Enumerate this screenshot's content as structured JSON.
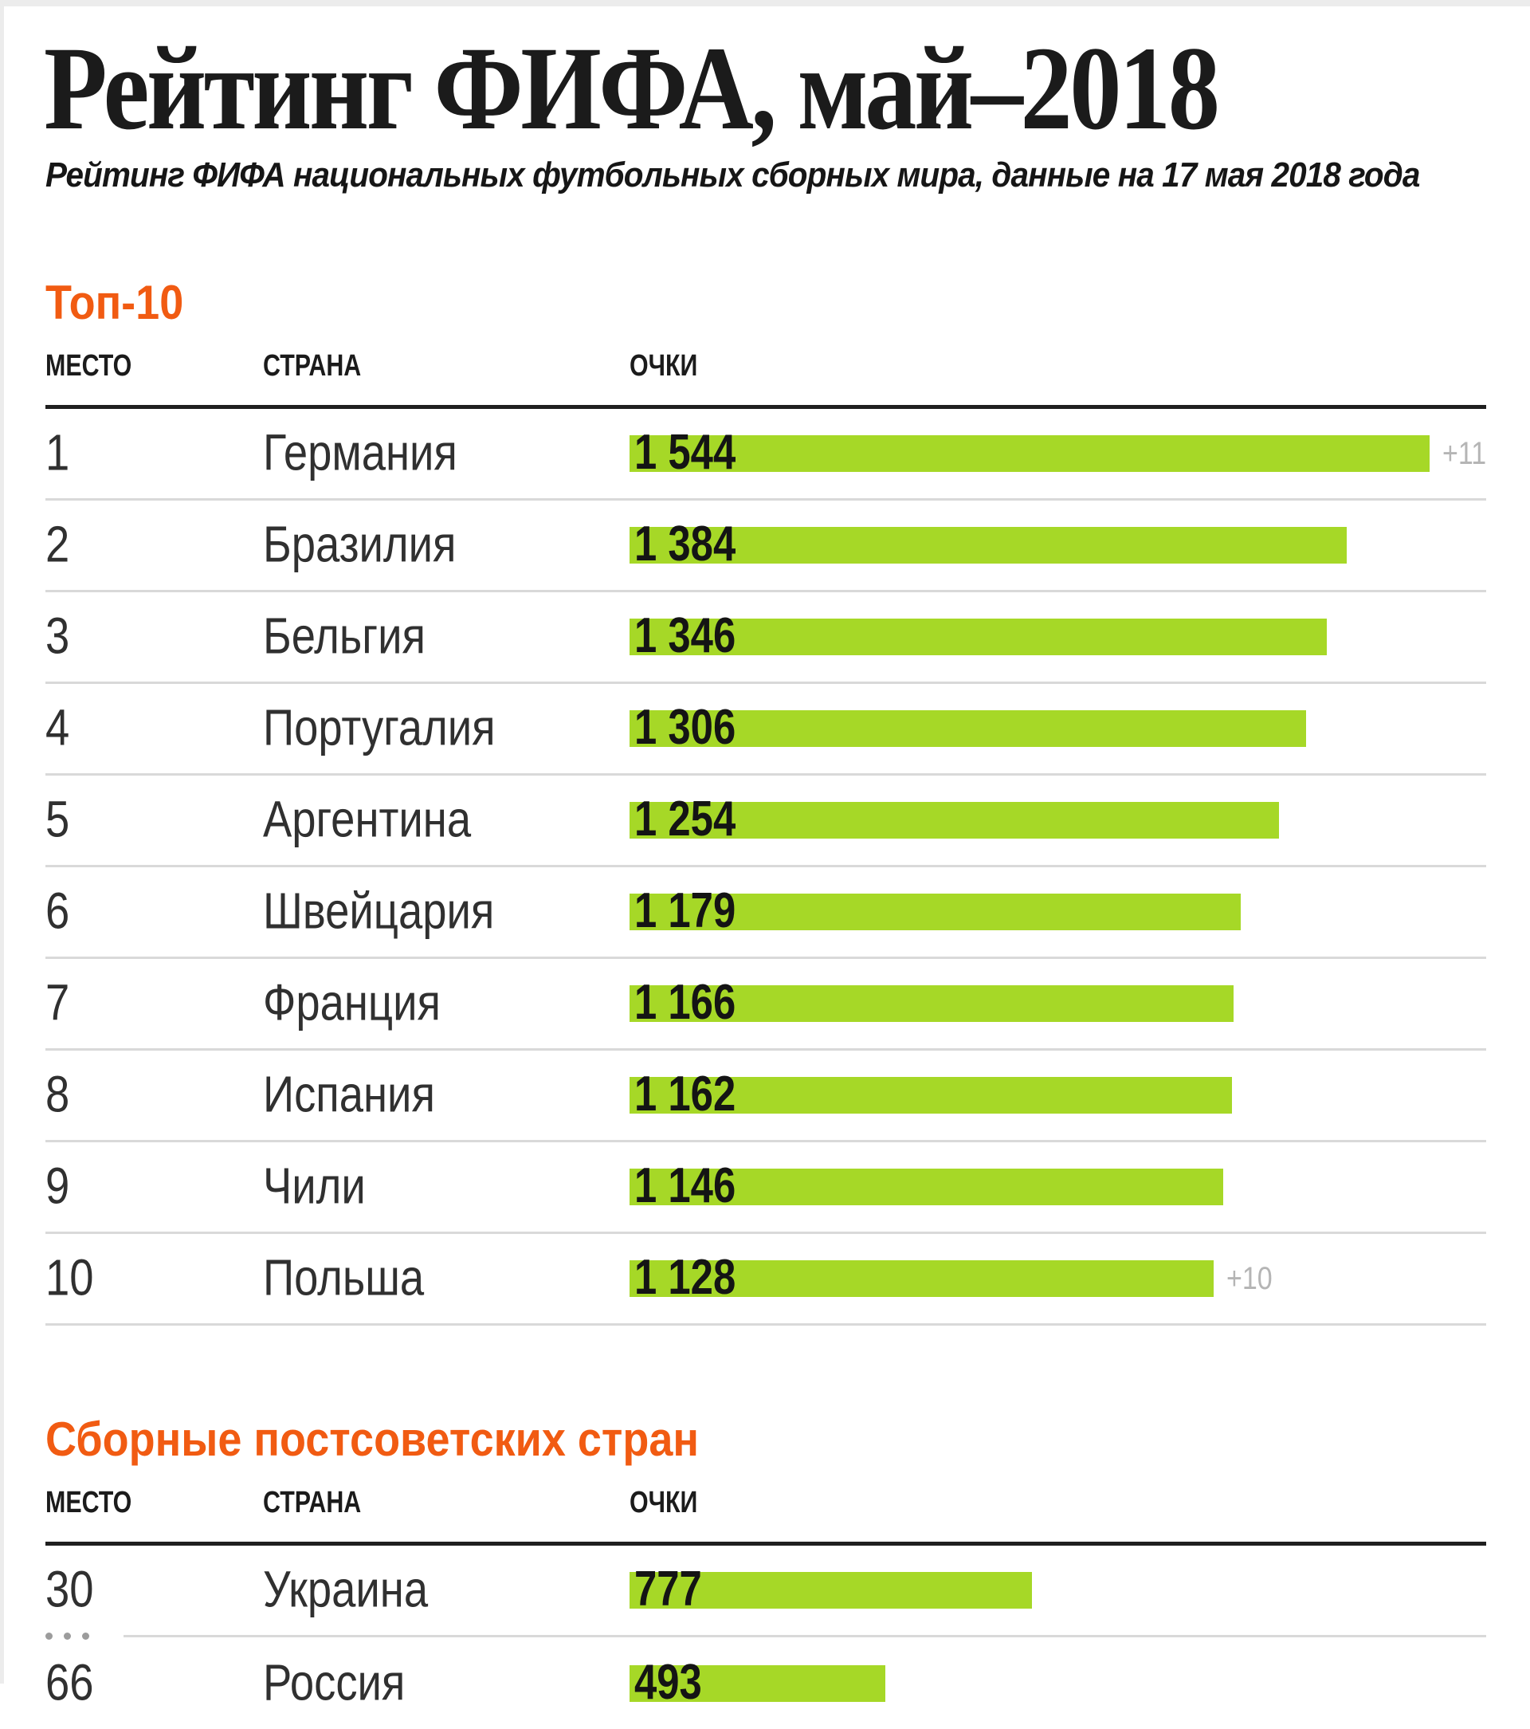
{
  "page": {
    "title": "Рейтинг ФИФА, май–2018",
    "subtitle": "Рейтинг ФИФА национальных футбольных сборных мира, данные на 17 мая 2018 года"
  },
  "columns": {
    "place": "МЕСТО",
    "country": "СТРАНА",
    "points": "ОЧКИ"
  },
  "colors": {
    "accent_orange": "#f15b12",
    "bar_green": "#a6d827",
    "delta_gray": "#b5b5b5",
    "rule_dark": "#1f1f1f",
    "rule_light": "#d9d9d9"
  },
  "chart_data": [
    {
      "type": "bar",
      "orientation": "horizontal",
      "title": "Топ-10",
      "columns": [
        "МЕСТО",
        "СТРАНА",
        "ОЧКИ"
      ],
      "value_axis_max": 1544,
      "rows": [
        {
          "place": "1",
          "country": "Германия",
          "points": 1544,
          "points_label": "1 544",
          "rank_change": "+11"
        },
        {
          "place": "2",
          "country": "Бразилия",
          "points": 1384,
          "points_label": "1 384"
        },
        {
          "place": "3",
          "country": "Бельгия",
          "points": 1346,
          "points_label": "1 346"
        },
        {
          "place": "4",
          "country": "Португалия",
          "points": 1306,
          "points_label": "1 306"
        },
        {
          "place": "5",
          "country": "Аргентина",
          "points": 1254,
          "points_label": "1 254"
        },
        {
          "place": "6",
          "country": "Швейцария",
          "points": 1179,
          "points_label": "1 179"
        },
        {
          "place": "7",
          "country": "Франция",
          "points": 1166,
          "points_label": "1 166"
        },
        {
          "place": "8",
          "country": "Испания",
          "points": 1162,
          "points_label": "1 162"
        },
        {
          "place": "9",
          "country": "Чили",
          "points": 1146,
          "points_label": "1 146"
        },
        {
          "place": "10",
          "country": "Польша",
          "points": 1128,
          "points_label": "1 128",
          "rank_change": "+10"
        }
      ]
    },
    {
      "type": "bar",
      "orientation": "horizontal",
      "title": "Сборные постсоветских стран",
      "columns": [
        "МЕСТО",
        "СТРАНА",
        "ОЧКИ"
      ],
      "value_axis_max": 1544,
      "rows": [
        {
          "place": "30",
          "country": "Украина",
          "points": 777,
          "points_label": "777"
        },
        {
          "divider": "ellipsis"
        },
        {
          "place": "66",
          "country": "Россия",
          "points": 493,
          "points_label": "493",
          "clipped": true
        }
      ]
    }
  ]
}
